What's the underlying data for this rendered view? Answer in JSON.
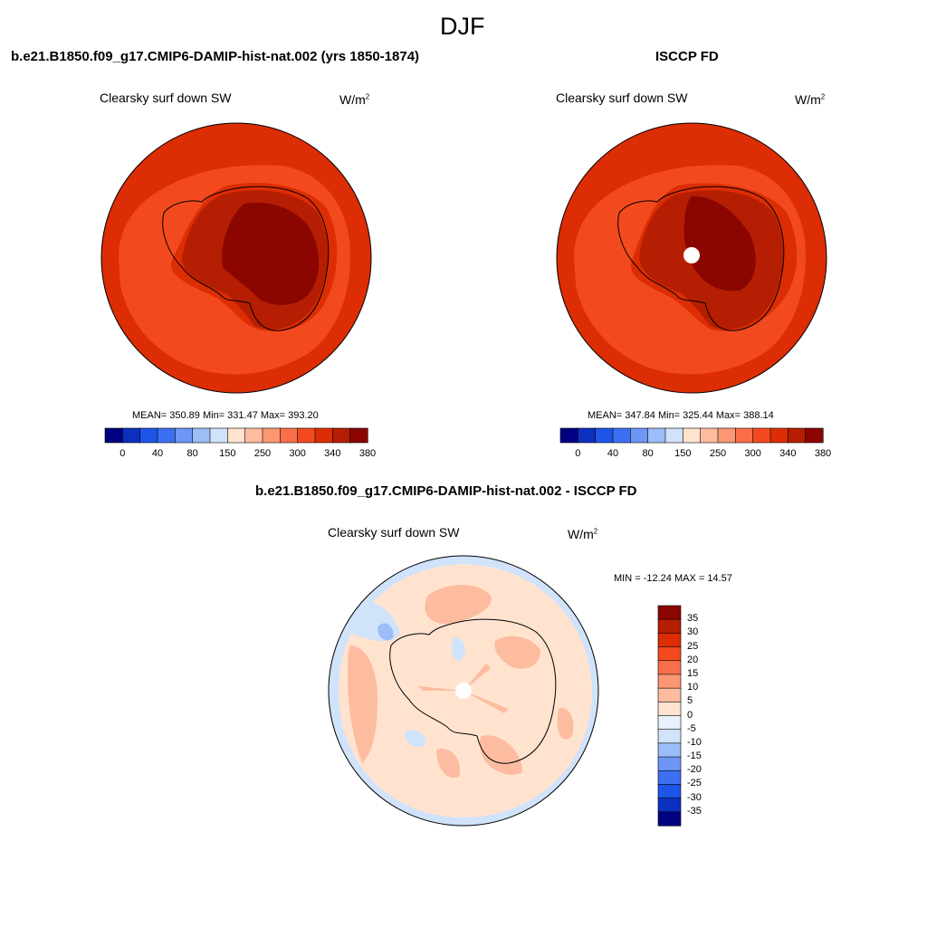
{
  "figure": {
    "title": "DJF"
  },
  "colors": {
    "abs_scale": [
      "#000080",
      "#0b2fbf",
      "#1d55e8",
      "#3c6ff2",
      "#6d96f6",
      "#9cbdf8",
      "#d0e3fb",
      "#ffe3cf",
      "#fdbc9f",
      "#fb9873",
      "#fa6f4a",
      "#f24a1e",
      "#dc2d04",
      "#b51e02",
      "#8b0600"
    ],
    "diff_scale": [
      "#000080",
      "#0b2fbf",
      "#1d55e8",
      "#3c6ff2",
      "#6d96f6",
      "#9cbdf8",
      "#d0e3fb",
      "#e8f1fb",
      "#ffe3cf",
      "#fdbc9f",
      "#fb9873",
      "#fa6f4a",
      "#f24a1e",
      "#dc2d04",
      "#b51e02",
      "#8b0600"
    ]
  },
  "panels": {
    "model": {
      "title": "b.e21.B1850.f09_g17.CMIP6-DAMIP-hist-nat.002 (yrs 1850-1874)",
      "variable": "Clearsky surf down SW",
      "units": "W/m",
      "units_sup": "2",
      "stats": "MEAN= 350.89  Min= 331.47  Max= 393.20",
      "colorbar_ticks": [
        "0",
        "40",
        "80",
        "150",
        "250",
        "300",
        "340",
        "380"
      ]
    },
    "obs": {
      "title": "ISCCP FD",
      "variable": "Clearsky surf down SW",
      "units": "W/m",
      "units_sup": "2",
      "stats": "MEAN= 347.84  Min= 325.44  Max= 388.14",
      "colorbar_ticks": [
        "0",
        "40",
        "80",
        "150",
        "250",
        "300",
        "340",
        "380"
      ]
    },
    "diff": {
      "title": "b.e21.B1850.f09_g17.CMIP6-DAMIP-hist-nat.002 - ISCCP FD",
      "variable": "Clearsky surf down SW",
      "units": "W/m",
      "units_sup": "2",
      "stats": "MIN = -12.24 MAX =  14.57",
      "colorbar_ticks": [
        "35",
        "30",
        "25",
        "20",
        "15",
        "10",
        "5",
        "0",
        "-5",
        "-10",
        "-15",
        "-20",
        "-25",
        "-30",
        "-35"
      ]
    }
  }
}
